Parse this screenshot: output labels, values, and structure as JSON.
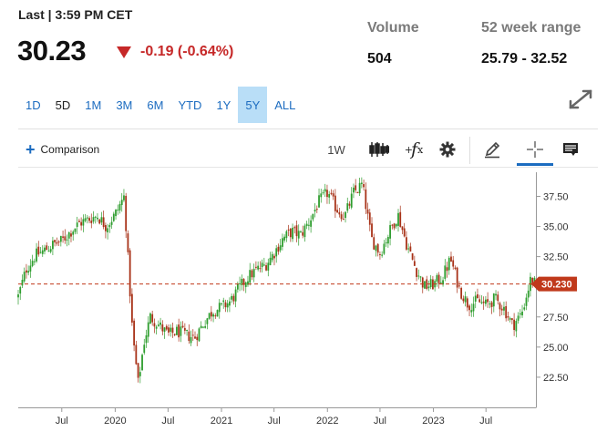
{
  "header": {
    "last_label": "Last | 3:59 PM CET",
    "price": "30.23",
    "change": "-0.19 (-0.64%)",
    "volume_label": "Volume",
    "volume_value": "504",
    "range_label": "52 week range",
    "range_value": "25.79 - 32.52"
  },
  "ranges": [
    {
      "label": "1D"
    },
    {
      "label": "5D"
    },
    {
      "label": "1M"
    },
    {
      "label": "3M"
    },
    {
      "label": "6M"
    },
    {
      "label": "YTD"
    },
    {
      "label": "1Y"
    },
    {
      "label": "5Y"
    },
    {
      "label": "ALL"
    }
  ],
  "active_range": "5Y",
  "toolbar": {
    "comparison_label": "Comparison",
    "interval_label": "1W",
    "icons": [
      "candlestick-icon",
      "function-icon",
      "gear-icon",
      "pencil-icon",
      "crosshair-icon",
      "news-icon"
    ]
  },
  "colors": {
    "up": "#2e9d2e",
    "down": "#a83218",
    "badge": "#c0391b",
    "accent": "#1c6cc0"
  },
  "chart_data": {
    "type": "candlestick",
    "x_ticks": [
      "Jul",
      "2020",
      "Jul",
      "2021",
      "Jul",
      "2022",
      "Jul",
      "2023",
      "Jul"
    ],
    "x_tick_dates": [
      "2019-07-01",
      "2020-01-01",
      "2020-07-01",
      "2021-01-01",
      "2021-07-01",
      "2022-01-01",
      "2022-07-01",
      "2023-01-01",
      "2023-07-01"
    ],
    "y_ticks": [
      "37.50",
      "35.00",
      "32.50",
      "30.00",
      "27.50",
      "25.00",
      "22.50"
    ],
    "y_tick_values": [
      37.5,
      35.0,
      32.5,
      30.0,
      27.5,
      25.0,
      22.5
    ],
    "ylim": [
      20.0,
      39.5
    ],
    "xlim": [
      "2019-02-01",
      "2023-12-20"
    ],
    "last_price": 30.23,
    "last_price_label": "30.230",
    "gridlines": false,
    "series": [
      {
        "points": [
          [
            "2019-02-01",
            29.2
          ],
          [
            "2019-03-01",
            31.5
          ],
          [
            "2019-04-01",
            32.6
          ],
          [
            "2019-05-01",
            33.0
          ],
          [
            "2019-06-01",
            33.5
          ],
          [
            "2019-07-01",
            33.8
          ],
          [
            "2019-08-01",
            34.6
          ],
          [
            "2019-09-01",
            35.3
          ],
          [
            "2019-10-01",
            35.6
          ],
          [
            "2019-11-01",
            35.9
          ],
          [
            "2019-12-01",
            35.0
          ],
          [
            "2020-01-01",
            36.0
          ],
          [
            "2020-02-01",
            37.5
          ],
          [
            "2020-03-01",
            26.0
          ],
          [
            "2020-03-20",
            22.0
          ],
          [
            "2020-04-10",
            25.5
          ],
          [
            "2020-05-01",
            27.5
          ],
          [
            "2020-06-01",
            26.8
          ],
          [
            "2020-07-01",
            26.0
          ],
          [
            "2020-08-01",
            26.3
          ],
          [
            "2020-09-01",
            26.0
          ],
          [
            "2020-10-01",
            25.8
          ],
          [
            "2020-11-01",
            27.0
          ],
          [
            "2020-12-01",
            28.0
          ],
          [
            "2021-01-01",
            28.3
          ],
          [
            "2021-02-01",
            28.8
          ],
          [
            "2021-03-01",
            29.8
          ],
          [
            "2021-04-01",
            30.8
          ],
          [
            "2021-05-01",
            31.4
          ],
          [
            "2021-06-01",
            31.8
          ],
          [
            "2021-07-01",
            32.8
          ],
          [
            "2021-08-01",
            34.0
          ],
          [
            "2021-09-01",
            34.6
          ],
          [
            "2021-10-01",
            34.3
          ],
          [
            "2021-11-01",
            35.5
          ],
          [
            "2021-12-01",
            37.0
          ],
          [
            "2022-01-01",
            37.8
          ],
          [
            "2022-02-01",
            36.5
          ],
          [
            "2022-03-01",
            35.8
          ],
          [
            "2022-04-01",
            37.8
          ],
          [
            "2022-05-01",
            38.5
          ],
          [
            "2022-06-01",
            34.0
          ],
          [
            "2022-07-01",
            32.8
          ],
          [
            "2022-08-01",
            34.5
          ],
          [
            "2022-09-01",
            36.0
          ],
          [
            "2022-10-01",
            33.5
          ],
          [
            "2022-11-01",
            31.5
          ],
          [
            "2022-12-01",
            30.0
          ],
          [
            "2023-01-01",
            30.2
          ],
          [
            "2023-02-01",
            30.8
          ],
          [
            "2023-03-01",
            32.3
          ],
          [
            "2023-04-01",
            29.8
          ],
          [
            "2023-05-01",
            28.5
          ],
          [
            "2023-06-01",
            28.8
          ],
          [
            "2023-07-01",
            28.5
          ],
          [
            "2023-08-01",
            29.0
          ],
          [
            "2023-09-01",
            28.2
          ],
          [
            "2023-10-01",
            26.8
          ],
          [
            "2023-11-01",
            27.8
          ],
          [
            "2023-12-01",
            30.5
          ],
          [
            "2023-12-20",
            30.23
          ]
        ]
      }
    ]
  }
}
